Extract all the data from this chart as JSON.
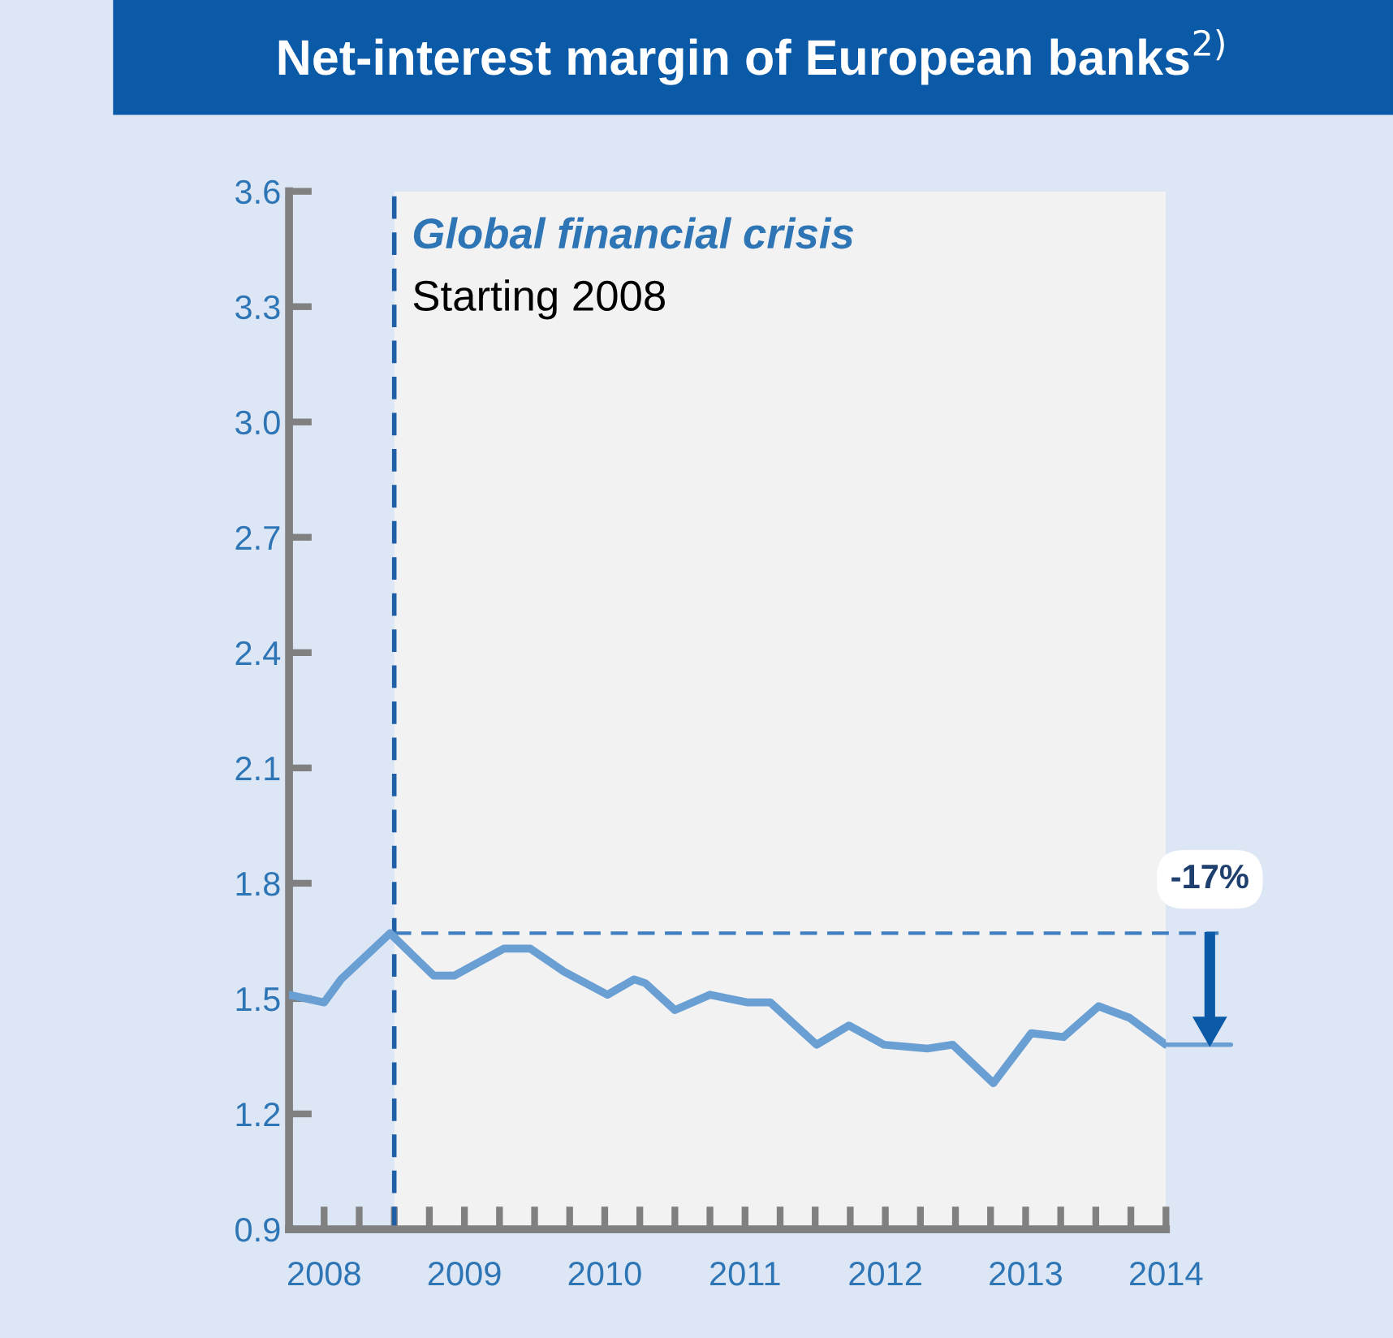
{
  "chart_data": {
    "type": "line",
    "title": "Net-interest margin of European banks$^{2)}$",
    "x": [
      2007.75,
      2008.0,
      2008.12,
      2008.47,
      2008.78,
      2008.93,
      2009.28,
      2009.47,
      2009.71,
      2010.02,
      2010.21,
      2010.29,
      2010.5,
      2010.75,
      2011.02,
      2011.18,
      2011.51,
      2011.74,
      2011.99,
      2012.3,
      2012.48,
      2012.77,
      2013.04,
      2013.27,
      2013.52,
      2013.74,
      2014.0
    ],
    "series": [
      {
        "color": "#6a9fd4",
        "values": [
          1.51,
          1.49,
          1.55,
          1.67,
          1.56,
          1.56,
          1.63,
          1.63,
          1.57,
          1.51,
          1.55,
          1.54,
          1.47,
          1.51,
          1.49,
          1.49,
          1.38,
          1.43,
          1.38,
          1.37,
          1.38,
          1.28,
          1.41,
          1.4,
          1.48,
          1.45,
          1.38
        ]
      }
    ],
    "xlim": [
      2007.75,
      2014.0
    ],
    "xticks": [
      2008,
      {
        "value": 2008.25,
        "label": null
      },
      {
        "value": 2008.5,
        "label": null
      },
      {
        "value": 2008.75,
        "label": null
      },
      2009,
      {
        "value": 2009.25,
        "label": null
      },
      {
        "value": 2009.5,
        "label": null
      },
      {
        "value": 2009.75,
        "label": null
      },
      2010,
      {
        "value": 2010.25,
        "label": null
      },
      {
        "value": 2010.5,
        "label": null
      },
      {
        "value": 2010.75,
        "label": null
      },
      2011,
      {
        "value": 2011.25,
        "label": null
      },
      {
        "value": 2011.5,
        "label": null
      },
      {
        "value": 2011.75,
        "label": null
      },
      2012,
      {
        "value": 2012.25,
        "label": null
      },
      {
        "value": 2012.5,
        "label": null
      },
      {
        "value": 2012.75,
        "label": null
      },
      2013,
      {
        "value": 2013.25,
        "label": null
      },
      {
        "value": 2013.5,
        "label": null
      },
      {
        "value": 2013.75,
        "label": null
      },
      2014
    ],
    "ylim": [
      0.9,
      3.6
    ],
    "yticks": [
      0.9,
      1.2,
      1.5,
      1.8,
      2.1,
      2.4,
      2.7,
      {
        "value": 3.0,
        "label": "3.0"
      },
      3.3,
      3.6
    ],
    "ref_lines": [
      {
        "axis": "x",
        "value": 2008.5,
        "color": "#1f5fa8",
        "line_style": "dashed"
      },
      {
        "axis": "y",
        "value": 1.67,
        "color": "#3f7fbf",
        "line_style": "dashed"
      }
    ],
    "bands": [
      {
        "axis": "x",
        "from": 2008.5,
        "to": 2014.0,
        "color": "#f2f2f2"
      }
    ],
    "annotations": [
      "Global financial crisis",
      "Starting 2008",
      "-17%"
    ],
    "grid": false,
    "legend": false,
    "marker": "none",
    "line_style": "solid"
  }
}
